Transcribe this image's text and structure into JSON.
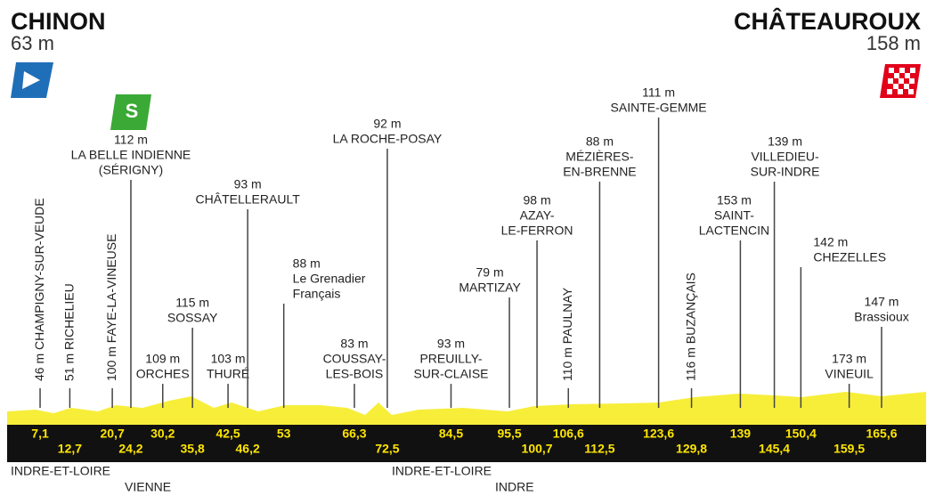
{
  "start": {
    "name": "CHINON",
    "altitude": "63 m"
  },
  "finish": {
    "name": "CHÂTEAUROUX",
    "altitude": "158 m"
  },
  "waypoints": [
    {
      "altitude": "46 m",
      "name": [
        "CHAMPIGNY-SUR-VEUDE"
      ],
      "km": "7,1"
    },
    {
      "altitude": "51 m",
      "name": [
        "RICHELIEU"
      ],
      "km": "12,7"
    },
    {
      "altitude": "100 m",
      "name": [
        "FAYE-LA-VINEUSE"
      ],
      "km": "20,7"
    },
    {
      "altitude": "112 m",
      "name": [
        "LA BELLE INDIENNE",
        "(SÉRIGNY)"
      ],
      "km": "24,2"
    },
    {
      "altitude": "109 m",
      "name": [
        "ORCHES"
      ],
      "km": "30,2"
    },
    {
      "altitude": "115 m",
      "name": [
        "SOSSAY"
      ],
      "km": "35,8"
    },
    {
      "altitude": "103 m",
      "name": [
        "THURÉ"
      ],
      "km": "42,5"
    },
    {
      "altitude": "93 m",
      "name": [
        "CHÂTELLERAULT"
      ],
      "km": "46,2"
    },
    {
      "altitude": "88 m",
      "name": [
        "Le Grenadier",
        "Français"
      ],
      "km": "53"
    },
    {
      "altitude": "83 m",
      "name": [
        "COUSSAY-",
        "LES-BOIS"
      ],
      "km": "66,3"
    },
    {
      "altitude": "92 m",
      "name": [
        "LA ROCHE-POSAY"
      ],
      "km": "72,5"
    },
    {
      "altitude": "93 m",
      "name": [
        "PREUILLY-",
        "SUR-CLAISE"
      ],
      "km": "84,5"
    },
    {
      "altitude": "79 m",
      "name": [
        "MARTIZAY"
      ],
      "km": "95,5"
    },
    {
      "altitude": "98 m",
      "name": [
        "AZAY-",
        "LE-FERRON"
      ],
      "km": "100,7"
    },
    {
      "altitude": "110 m",
      "name": [
        "PAULNAY"
      ],
      "km": "106,6"
    },
    {
      "altitude": "88 m",
      "name": [
        "MÉZIÈRES-",
        "EN-BRENNE"
      ],
      "km": "112,5"
    },
    {
      "altitude": "111 m",
      "name": [
        "SAINTE-GEMME"
      ],
      "km": "123,6"
    },
    {
      "altitude": "116 m",
      "name": [
        "BUZANÇAIS"
      ],
      "km": "129,8"
    },
    {
      "altitude": "153 m",
      "name": [
        "SAINT-",
        "LACTENCIN"
      ],
      "km": "139"
    },
    {
      "altitude": "139 m",
      "name": [
        "VILLEDIEU-",
        "SUR-INDRE"
      ],
      "km": "145,4"
    },
    {
      "altitude": "142 m",
      "name": [
        "CHEZELLES"
      ],
      "km": "150,4"
    },
    {
      "altitude": "173 m",
      "name": [
        "VINEUIL"
      ],
      "km": "159,5"
    },
    {
      "altitude": "147 m",
      "name": [
        "Brassioux"
      ],
      "km": "165,6"
    }
  ],
  "regions": [
    "INDRE-ET-LOIRE",
    "VIENNE",
    "INDRE-ET-LOIRE",
    "INDRE"
  ]
}
